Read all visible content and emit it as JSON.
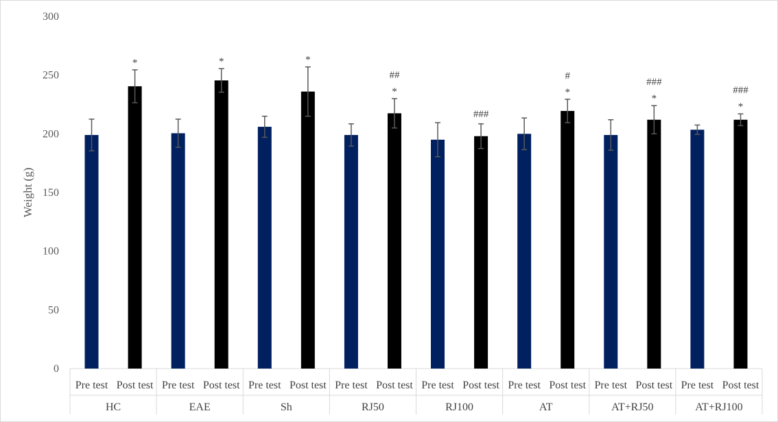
{
  "chart_data": {
    "type": "bar",
    "title": "",
    "ylabel": "Weight (g)",
    "xlabel": "",
    "ylim": [
      0,
      300
    ],
    "yticks": [
      "0",
      "50",
      "100",
      "150",
      "200",
      "250",
      "300"
    ],
    "grid": false,
    "legend": "none",
    "groups": [
      {
        "label": "HC",
        "subs": [
          {
            "label": "Pre test",
            "value": 199,
            "err": 13.5,
            "ann": []
          },
          {
            "label": "Post test",
            "value": 240.5,
            "err": 14,
            "ann": [
              "*"
            ]
          }
        ]
      },
      {
        "label": "EAE",
        "subs": [
          {
            "label": "Pre test",
            "value": 200.5,
            "err": 12,
            "ann": []
          },
          {
            "label": "Post test",
            "value": 245.5,
            "err": 10,
            "ann": [
              "*"
            ]
          }
        ]
      },
      {
        "label": "Sh",
        "subs": [
          {
            "label": "Pre test",
            "value": 206,
            "err": 9,
            "ann": []
          },
          {
            "label": "Post test",
            "value": 236,
            "err": 21,
            "ann": [
              "*"
            ]
          }
        ]
      },
      {
        "label": "RJ50",
        "subs": [
          {
            "label": "Pre test",
            "value": 199,
            "err": 9.5,
            "ann": []
          },
          {
            "label": "Post test",
            "value": 217.5,
            "err": 12.5,
            "ann": [
              "##",
              "*"
            ]
          }
        ]
      },
      {
        "label": "RJ100",
        "subs": [
          {
            "label": "Pre test",
            "value": 195,
            "err": 14.5,
            "ann": []
          },
          {
            "label": "Post test",
            "value": 198,
            "err": 10.5,
            "ann": [
              "###"
            ]
          }
        ]
      },
      {
        "label": "AT",
        "subs": [
          {
            "label": "Pre test",
            "value": 200,
            "err": 13.5,
            "ann": []
          },
          {
            "label": "Post test",
            "value": 219.5,
            "err": 10,
            "ann": [
              "#",
              "*"
            ]
          }
        ]
      },
      {
        "label": "AT+RJ50",
        "subs": [
          {
            "label": "Pre test",
            "value": 199,
            "err": 13,
            "ann": []
          },
          {
            "label": "Post test",
            "value": 212,
            "err": 12,
            "ann": [
              "###",
              "*"
            ]
          }
        ]
      },
      {
        "label": "AT+RJ100",
        "subs": [
          {
            "label": "Pre test",
            "value": 203.5,
            "err": 4,
            "ann": []
          },
          {
            "label": "Post test",
            "value": 212,
            "err": 5,
            "ann": [
              "###",
              "*"
            ]
          }
        ]
      }
    ],
    "colors": {
      "pre": "#002060",
      "post": "#000000",
      "error": "#595959",
      "axis": "#d9d9d9"
    }
  }
}
